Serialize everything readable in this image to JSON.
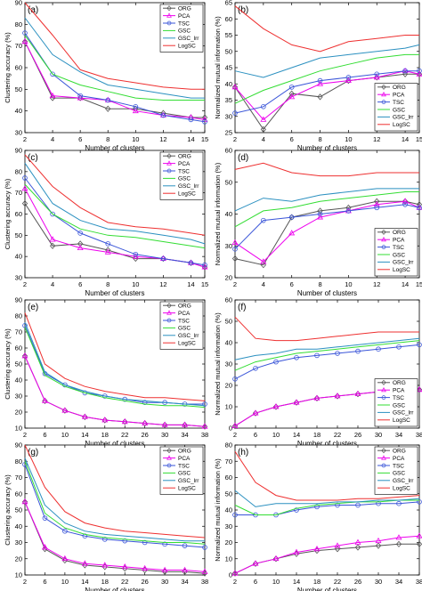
{
  "chart_data": [
    {
      "panel": "(a)",
      "type": "line",
      "x": [
        2,
        4,
        6,
        8,
        10,
        12,
        14,
        15
      ],
      "xticks": [
        2,
        4,
        6,
        8,
        10,
        12,
        14,
        15
      ],
      "yticks": [
        30,
        40,
        50,
        60,
        70,
        80,
        90
      ],
      "xlim": [
        2,
        15
      ],
      "ylim": [
        30,
        90
      ],
      "xlabel": "Number of clusters",
      "ylabel": "Clustering accuracy (%)",
      "legend": "top-right",
      "series": [
        {
          "name": "ORG",
          "values": [
            72,
            46,
            46,
            41,
            41,
            39,
            37,
            37
          ]
        },
        {
          "name": "PCA",
          "values": [
            72,
            47,
            46,
            45,
            40,
            38,
            37,
            36
          ]
        },
        {
          "name": "TSC",
          "values": [
            76,
            57,
            47,
            45,
            42,
            38,
            36,
            35
          ]
        },
        {
          "name": "GSC",
          "values": [
            75,
            57,
            52,
            49,
            46,
            45,
            45,
            45
          ]
        },
        {
          "name": "GSC_lrr",
          "values": [
            83,
            66,
            58,
            52,
            50,
            48,
            46,
            46
          ]
        },
        {
          "name": "LogSC",
          "values": [
            90,
            75,
            59,
            55,
            53,
            51,
            50,
            50
          ]
        }
      ]
    },
    {
      "panel": "(b)",
      "type": "line",
      "x": [
        2,
        4,
        6,
        8,
        10,
        12,
        14,
        15
      ],
      "xticks": [
        2,
        4,
        6,
        8,
        10,
        12,
        14,
        15
      ],
      "yticks": [
        25,
        30,
        35,
        40,
        45,
        50,
        55,
        60,
        65
      ],
      "xlim": [
        2,
        15
      ],
      "ylim": [
        25,
        65
      ],
      "xlabel": "Number of clusters",
      "ylabel": "Normalized mutual information (%)",
      "legend": "bottom-right",
      "series": [
        {
          "name": "ORG",
          "values": [
            39,
            26,
            37,
            36,
            41,
            42,
            43,
            43
          ]
        },
        {
          "name": "PCA",
          "values": [
            39,
            29,
            36,
            40,
            41,
            42,
            44,
            43
          ]
        },
        {
          "name": "TSC",
          "values": [
            31,
            33,
            39,
            41,
            42,
            43,
            44,
            44
          ]
        },
        {
          "name": "GSC",
          "values": [
            34,
            38,
            41,
            44,
            46,
            48,
            49,
            49
          ]
        },
        {
          "name": "GSC_lrr",
          "values": [
            44,
            42,
            45,
            48,
            49,
            50,
            51,
            52
          ]
        },
        {
          "name": "LogSC",
          "values": [
            64,
            57,
            52,
            50,
            53,
            54,
            55,
            55
          ]
        }
      ]
    },
    {
      "panel": "(c)",
      "type": "line",
      "x": [
        2,
        4,
        6,
        8,
        10,
        12,
        14,
        15
      ],
      "xticks": [
        2,
        4,
        6,
        8,
        10,
        12,
        14,
        15
      ],
      "yticks": [
        30,
        40,
        50,
        60,
        70,
        80,
        90
      ],
      "xlim": [
        2,
        15
      ],
      "ylim": [
        30,
        90
      ],
      "xlabel": "Number of clusters",
      "ylabel": "Clustering accuracy (%)",
      "legend": "top-right",
      "series": [
        {
          "name": "ORG",
          "values": [
            65,
            45,
            46,
            43,
            39,
            39,
            37,
            35
          ]
        },
        {
          "name": "PCA",
          "values": [
            72,
            48,
            44,
            42,
            40,
            39,
            37,
            35
          ]
        },
        {
          "name": "TSC",
          "values": [
            77,
            60,
            51,
            46,
            41,
            39,
            37,
            36
          ]
        },
        {
          "name": "GSC",
          "values": [
            74,
            60,
            53,
            50,
            49,
            47,
            45,
            44
          ]
        },
        {
          "name": "GSC_lrr",
          "values": [
            84,
            65,
            57,
            53,
            52,
            50,
            48,
            46
          ]
        },
        {
          "name": "LogSC",
          "values": [
            88,
            73,
            63,
            56,
            54,
            53,
            51,
            50
          ]
        }
      ]
    },
    {
      "panel": "(d)",
      "type": "line",
      "x": [
        2,
        4,
        6,
        8,
        10,
        12,
        14,
        15
      ],
      "xticks": [
        2,
        4,
        6,
        8,
        10,
        12,
        14,
        15
      ],
      "yticks": [
        20,
        30,
        40,
        50,
        60
      ],
      "xlim": [
        2,
        15
      ],
      "ylim": [
        20,
        60
      ],
      "xlabel": "Number of clusters",
      "ylabel": "Normalized mutual information (%)",
      "legend": "bottom-right",
      "series": [
        {
          "name": "ORG",
          "values": [
            26,
            24,
            39,
            41,
            42,
            44,
            44,
            43
          ]
        },
        {
          "name": "PCA",
          "values": [
            31,
            25,
            34,
            39,
            41,
            43,
            44,
            42
          ]
        },
        {
          "name": "TSC",
          "values": [
            29,
            38,
            39,
            40,
            41,
            42,
            43,
            42
          ]
        },
        {
          "name": "GSC",
          "values": [
            36,
            41,
            42,
            44,
            45,
            46,
            47,
            47
          ]
        },
        {
          "name": "GSC_lrr",
          "values": [
            41,
            45,
            44,
            46,
            47,
            48,
            48,
            48
          ]
        },
        {
          "name": "LogSC",
          "values": [
            54,
            56,
            53,
            52,
            52,
            53,
            53,
            53
          ]
        }
      ]
    },
    {
      "panel": "(e)",
      "type": "line",
      "x": [
        2,
        6,
        10,
        14,
        18,
        22,
        26,
        30,
        34,
        38
      ],
      "xticks": [
        2,
        6,
        10,
        14,
        18,
        22,
        26,
        30,
        34,
        38
      ],
      "yticks": [
        10,
        20,
        30,
        40,
        50,
        60,
        70,
        80,
        90
      ],
      "xlim": [
        2,
        38
      ],
      "ylim": [
        10,
        90
      ],
      "xlabel": "Number of clusters",
      "ylabel": "Clustering accuracy (%)",
      "legend": "top-right",
      "series": [
        {
          "name": "ORG",
          "values": [
            55,
            27,
            21,
            17,
            15,
            14,
            13,
            12,
            12,
            11
          ]
        },
        {
          "name": "PCA",
          "values": [
            55,
            27,
            21,
            17,
            15,
            14,
            13,
            12,
            12,
            11
          ]
        },
        {
          "name": "TSC",
          "values": [
            74,
            44,
            37,
            32,
            30,
            28,
            26,
            26,
            25,
            25
          ]
        },
        {
          "name": "GSC",
          "values": [
            73,
            43,
            36,
            32,
            29,
            27,
            25,
            24,
            24,
            23
          ]
        },
        {
          "name": "GSC_lrr",
          "values": [
            76,
            45,
            37,
            33,
            30,
            28,
            27,
            26,
            25,
            24
          ]
        },
        {
          "name": "LogSC",
          "values": [
            82,
            50,
            41,
            36,
            33,
            31,
            29,
            29,
            28,
            27
          ]
        }
      ]
    },
    {
      "panel": "(f)",
      "type": "line",
      "x": [
        2,
        6,
        10,
        14,
        18,
        22,
        26,
        30,
        34,
        38
      ],
      "xticks": [
        2,
        6,
        10,
        14,
        18,
        22,
        26,
        30,
        34,
        38
      ],
      "yticks": [
        0,
        10,
        20,
        30,
        40,
        50,
        60
      ],
      "xlim": [
        2,
        38
      ],
      "ylim": [
        0,
        60
      ],
      "xlabel": "Number of clusters",
      "ylabel": "Normalized mutual information (%)",
      "legend": "bottom-right",
      "series": [
        {
          "name": "ORG",
          "values": [
            1,
            7,
            10,
            12,
            14,
            15,
            16,
            17,
            18,
            18
          ]
        },
        {
          "name": "PCA",
          "values": [
            1,
            7,
            10,
            12,
            14,
            15,
            16,
            17,
            18,
            18
          ]
        },
        {
          "name": "TSC",
          "values": [
            23,
            28,
            31,
            33,
            34,
            35,
            36,
            37,
            38,
            39
          ]
        },
        {
          "name": "GSC",
          "values": [
            27,
            31,
            33,
            35,
            36,
            37,
            38,
            39,
            40,
            41
          ]
        },
        {
          "name": "GSC_lrr",
          "values": [
            32,
            34,
            35,
            37,
            37,
            38,
            39,
            40,
            41,
            42
          ]
        },
        {
          "name": "LogSC",
          "values": [
            52,
            42,
            41,
            41,
            42,
            43,
            44,
            45,
            45,
            45
          ]
        }
      ]
    },
    {
      "panel": "(g)",
      "type": "line",
      "x": [
        2,
        6,
        10,
        14,
        18,
        22,
        26,
        30,
        34,
        38
      ],
      "xticks": [
        2,
        6,
        10,
        14,
        18,
        22,
        26,
        30,
        34,
        38
      ],
      "yticks": [
        10,
        20,
        30,
        40,
        50,
        60,
        70,
        80,
        90
      ],
      "xlim": [
        2,
        38
      ],
      "ylim": [
        10,
        90
      ],
      "xlabel": "Number of clusters",
      "ylabel": "Clustering accuracy (%)",
      "legend": "top-right",
      "series": [
        {
          "name": "ORG",
          "values": [
            55,
            26,
            19,
            16,
            15,
            14,
            13,
            12,
            12,
            11
          ]
        },
        {
          "name": "PCA",
          "values": [
            55,
            27,
            20,
            17,
            16,
            15,
            14,
            13,
            13,
            12
          ]
        },
        {
          "name": "TSC",
          "values": [
            78,
            45,
            37,
            34,
            32,
            31,
            30,
            29,
            28,
            27
          ]
        },
        {
          "name": "GSC",
          "values": [
            80,
            48,
            39,
            35,
            33,
            32,
            31,
            30,
            30,
            29
          ]
        },
        {
          "name": "GSC_lrr",
          "values": [
            82,
            53,
            42,
            37,
            35,
            34,
            33,
            32,
            31,
            31
          ]
        },
        {
          "name": "LogSC",
          "values": [
            90,
            64,
            49,
            42,
            39,
            37,
            36,
            35,
            34,
            33
          ]
        }
      ]
    },
    {
      "panel": "(h)",
      "type": "line",
      "x": [
        2,
        6,
        10,
        14,
        18,
        22,
        26,
        30,
        34,
        38
      ],
      "xticks": [
        2,
        6,
        10,
        14,
        18,
        22,
        26,
        30,
        34,
        38
      ],
      "yticks": [
        0,
        10,
        20,
        30,
        40,
        50,
        60,
        70,
        80
      ],
      "xlim": [
        2,
        38
      ],
      "ylim": [
        0,
        80
      ],
      "xlabel": "Number of clusters",
      "ylabel": "Normalized mutual information (%)",
      "legend": "top-right",
      "series": [
        {
          "name": "ORG",
          "values": [
            1,
            7,
            10,
            13,
            15,
            16,
            17,
            18,
            19,
            19
          ]
        },
        {
          "name": "PCA",
          "values": [
            1,
            7,
            10,
            14,
            16,
            18,
            20,
            21,
            23,
            24
          ]
        },
        {
          "name": "TSC",
          "values": [
            37,
            37,
            37,
            40,
            42,
            43,
            43,
            44,
            44,
            45
          ]
        },
        {
          "name": "GSC",
          "values": [
            43,
            37,
            37,
            41,
            43,
            44,
            45,
            45,
            46,
            46
          ]
        },
        {
          "name": "GSC_lrr",
          "values": [
            52,
            42,
            44,
            44,
            44,
            45,
            45,
            46,
            46,
            47
          ]
        },
        {
          "name": "LogSC",
          "values": [
            76,
            57,
            49,
            46,
            46,
            46,
            47,
            47,
            48,
            49
          ]
        }
      ]
    }
  ],
  "colors": {
    "ORG": "#555555",
    "PCA": "#ee00ee",
    "TSC": "#3a55d8",
    "GSC": "#33dd33",
    "GSC_lrr": "#2b90c0",
    "LogSC": "#ee3030"
  },
  "markers": {
    "ORG": "diamond",
    "PCA": "triangle",
    "TSC": "circle",
    "GSC": "none",
    "GSC_lrr": "none",
    "LogSC": "none"
  }
}
